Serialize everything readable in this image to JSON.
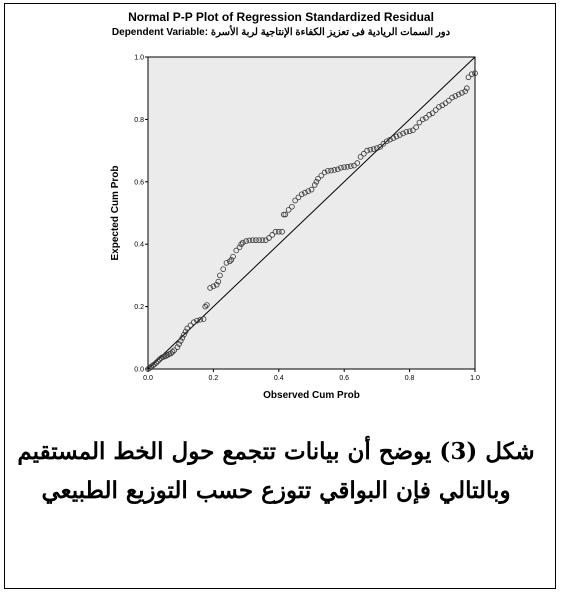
{
  "caption": "شكل (3) يوضح أن بيانات تتجمع حول الخط المستقيم وبالتالي فإن البواقي تتوزع حسب التوزيع الطبيعي",
  "colors": {
    "plot_bg": "#ebebeb",
    "marker": "#333333",
    "line": "#000000"
  },
  "chart_data": {
    "type": "scatter",
    "title": "Normal P-P Plot of Regression Standardized Residual",
    "subtitle_prefix": "Dependent Variable: ",
    "subtitle_value": "دور السمات الريادية فى تعزيز الكفاءة الإنتاجية لربة الأسرة",
    "xlabel": "Observed Cum Prob",
    "ylabel": "Expected Cum Prob",
    "xlim": [
      0,
      1
    ],
    "ylim": [
      0,
      1
    ],
    "xticks": [
      "0.0",
      "0.2",
      "0.4",
      "0.6",
      "0.8",
      "1.0"
    ],
    "yticks": [
      "0.0",
      "0.2",
      "0.4",
      "0.6",
      "0.8",
      "1.0"
    ],
    "grid": false,
    "reference_line": [
      [
        0,
        0
      ],
      [
        1,
        1
      ]
    ],
    "points": [
      [
        0.0,
        0.0
      ],
      [
        0.005,
        0.003
      ],
      [
        0.01,
        0.008
      ],
      [
        0.015,
        0.012
      ],
      [
        0.02,
        0.015
      ],
      [
        0.025,
        0.02
      ],
      [
        0.03,
        0.025
      ],
      [
        0.035,
        0.03
      ],
      [
        0.04,
        0.035
      ],
      [
        0.045,
        0.038
      ],
      [
        0.05,
        0.04
      ],
      [
        0.055,
        0.042
      ],
      [
        0.06,
        0.045
      ],
      [
        0.065,
        0.048
      ],
      [
        0.07,
        0.05
      ],
      [
        0.075,
        0.055
      ],
      [
        0.08,
        0.06
      ],
      [
        0.09,
        0.07
      ],
      [
        0.095,
        0.08
      ],
      [
        0.1,
        0.09
      ],
      [
        0.105,
        0.1
      ],
      [
        0.11,
        0.11
      ],
      [
        0.115,
        0.12
      ],
      [
        0.12,
        0.13
      ],
      [
        0.13,
        0.14
      ],
      [
        0.14,
        0.15
      ],
      [
        0.15,
        0.155
      ],
      [
        0.16,
        0.158
      ],
      [
        0.17,
        0.16
      ],
      [
        0.175,
        0.2
      ],
      [
        0.18,
        0.205
      ],
      [
        0.19,
        0.26
      ],
      [
        0.2,
        0.265
      ],
      [
        0.21,
        0.27
      ],
      [
        0.215,
        0.28
      ],
      [
        0.22,
        0.3
      ],
      [
        0.23,
        0.32
      ],
      [
        0.24,
        0.34
      ],
      [
        0.25,
        0.345
      ],
      [
        0.255,
        0.35
      ],
      [
        0.26,
        0.36
      ],
      [
        0.27,
        0.38
      ],
      [
        0.28,
        0.39
      ],
      [
        0.285,
        0.4
      ],
      [
        0.29,
        0.405
      ],
      [
        0.3,
        0.41
      ],
      [
        0.31,
        0.412
      ],
      [
        0.32,
        0.413
      ],
      [
        0.33,
        0.413
      ],
      [
        0.34,
        0.413
      ],
      [
        0.35,
        0.413
      ],
      [
        0.36,
        0.413
      ],
      [
        0.37,
        0.42
      ],
      [
        0.38,
        0.43
      ],
      [
        0.39,
        0.44
      ],
      [
        0.4,
        0.44
      ],
      [
        0.41,
        0.44
      ],
      [
        0.415,
        0.495
      ],
      [
        0.42,
        0.495
      ],
      [
        0.43,
        0.51
      ],
      [
        0.44,
        0.52
      ],
      [
        0.45,
        0.54
      ],
      [
        0.46,
        0.55
      ],
      [
        0.47,
        0.56
      ],
      [
        0.48,
        0.565
      ],
      [
        0.49,
        0.57
      ],
      [
        0.5,
        0.575
      ],
      [
        0.51,
        0.59
      ],
      [
        0.515,
        0.6
      ],
      [
        0.52,
        0.61
      ],
      [
        0.53,
        0.62
      ],
      [
        0.54,
        0.63
      ],
      [
        0.55,
        0.635
      ],
      [
        0.56,
        0.636
      ],
      [
        0.57,
        0.638
      ],
      [
        0.58,
        0.64
      ],
      [
        0.59,
        0.645
      ],
      [
        0.6,
        0.647
      ],
      [
        0.61,
        0.648
      ],
      [
        0.62,
        0.65
      ],
      [
        0.63,
        0.652
      ],
      [
        0.64,
        0.66
      ],
      [
        0.65,
        0.68
      ],
      [
        0.66,
        0.69
      ],
      [
        0.67,
        0.7
      ],
      [
        0.68,
        0.703
      ],
      [
        0.69,
        0.705
      ],
      [
        0.7,
        0.708
      ],
      [
        0.71,
        0.712
      ],
      [
        0.72,
        0.722
      ],
      [
        0.73,
        0.73
      ],
      [
        0.74,
        0.735
      ],
      [
        0.75,
        0.74
      ],
      [
        0.76,
        0.745
      ],
      [
        0.77,
        0.75
      ],
      [
        0.78,
        0.755
      ],
      [
        0.79,
        0.76
      ],
      [
        0.8,
        0.762
      ],
      [
        0.81,
        0.765
      ],
      [
        0.82,
        0.775
      ],
      [
        0.83,
        0.79
      ],
      [
        0.84,
        0.8
      ],
      [
        0.85,
        0.805
      ],
      [
        0.86,
        0.815
      ],
      [
        0.87,
        0.82
      ],
      [
        0.88,
        0.83
      ],
      [
        0.89,
        0.84
      ],
      [
        0.9,
        0.845
      ],
      [
        0.91,
        0.852
      ],
      [
        0.92,
        0.86
      ],
      [
        0.93,
        0.87
      ],
      [
        0.94,
        0.875
      ],
      [
        0.95,
        0.88
      ],
      [
        0.96,
        0.885
      ],
      [
        0.97,
        0.89
      ],
      [
        0.975,
        0.9
      ],
      [
        0.98,
        0.935
      ],
      [
        0.99,
        0.945
      ],
      [
        1.0,
        0.948
      ]
    ]
  }
}
